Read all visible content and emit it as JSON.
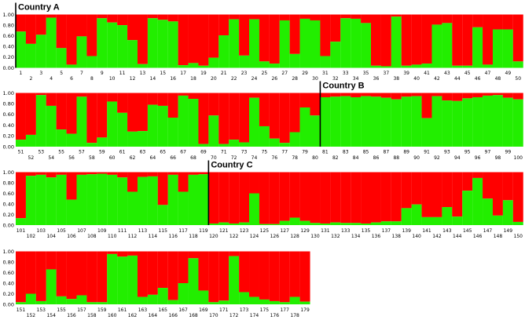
{
  "colors": {
    "cluster_green": "#22ee00",
    "cluster_red": "#ff0000",
    "divider": "#000000"
  },
  "chart_data": {
    "type": "bar",
    "stacked": true,
    "grid": false,
    "ylim": [
      0,
      1
    ],
    "yticks": [
      "0.00",
      "0.20",
      "0.40",
      "0.60",
      "0.80",
      "1.00"
    ],
    "series": [
      {
        "name": "",
        "color": "#22ee00",
        "role": "green"
      },
      {
        "name": "",
        "color": "#ff0000",
        "role": "red"
      }
    ],
    "panels": [
      {
        "start": 1,
        "end": 50
      },
      {
        "start": 51,
        "end": 100
      },
      {
        "start": 101,
        "end": 150
      },
      {
        "start": 151,
        "end": 179
      }
    ],
    "group_labels": [
      {
        "label": "Country A",
        "first_sample": 1
      },
      {
        "label": "Country B",
        "first_sample": 81
      },
      {
        "label": "Country C",
        "first_sample": 120
      }
    ],
    "samples": [
      1,
      2,
      3,
      4,
      5,
      6,
      7,
      8,
      9,
      10,
      11,
      12,
      13,
      14,
      15,
      16,
      17,
      18,
      19,
      20,
      21,
      22,
      23,
      24,
      25,
      26,
      27,
      28,
      29,
      30,
      31,
      32,
      33,
      34,
      35,
      36,
      37,
      38,
      39,
      40,
      41,
      42,
      43,
      44,
      45,
      46,
      47,
      48,
      49,
      50,
      51,
      52,
      53,
      54,
      55,
      56,
      57,
      58,
      59,
      60,
      61,
      62,
      63,
      64,
      65,
      66,
      67,
      68,
      69,
      70,
      71,
      72,
      73,
      74,
      75,
      76,
      77,
      78,
      79,
      80,
      81,
      82,
      83,
      84,
      85,
      86,
      87,
      88,
      89,
      90,
      91,
      92,
      93,
      94,
      95,
      96,
      97,
      98,
      99,
      100,
      101,
      102,
      103,
      104,
      105,
      106,
      107,
      108,
      109,
      110,
      111,
      112,
      113,
      114,
      115,
      116,
      117,
      118,
      119,
      120,
      121,
      122,
      123,
      124,
      125,
      126,
      127,
      128,
      129,
      130,
      131,
      132,
      133,
      134,
      135,
      136,
      137,
      138,
      139,
      140,
      141,
      142,
      143,
      144,
      145,
      146,
      147,
      148,
      149,
      150,
      151,
      152,
      153,
      154,
      155,
      156,
      157,
      158,
      159,
      160,
      161,
      162,
      163,
      164,
      165,
      166,
      167,
      168,
      169,
      170,
      171,
      172,
      173,
      174,
      175,
      176,
      177,
      178,
      179
    ],
    "green_values": [
      0.68,
      0.45,
      0.62,
      0.94,
      0.37,
      0.06,
      0.59,
      0.22,
      0.93,
      0.85,
      0.8,
      0.52,
      0.07,
      0.93,
      0.9,
      0.87,
      0.05,
      0.09,
      0.04,
      0.19,
      0.61,
      0.91,
      0.23,
      0.91,
      0.12,
      0.08,
      0.89,
      0.26,
      0.92,
      0.89,
      0.22,
      0.49,
      0.93,
      0.92,
      0.84,
      0.04,
      0.03,
      0.96,
      0.04,
      0.06,
      0.08,
      0.81,
      0.84,
      0.04,
      0.04,
      0.76,
      0.06,
      0.72,
      0.72,
      0.12,
      0.13,
      0.22,
      0.96,
      0.76,
      0.32,
      0.24,
      0.93,
      0.07,
      0.17,
      0.84,
      0.63,
      0.28,
      0.29,
      0.78,
      0.76,
      0.54,
      0.95,
      0.89,
      0.05,
      0.58,
      0.05,
      0.13,
      0.08,
      0.91,
      0.38,
      0.15,
      0.07,
      0.27,
      0.73,
      0.58,
      0.92,
      0.93,
      0.94,
      0.92,
      0.94,
      0.93,
      0.91,
      0.88,
      0.93,
      0.94,
      0.53,
      0.94,
      0.86,
      0.85,
      0.9,
      0.92,
      0.95,
      0.96,
      0.91,
      0.88,
      0.13,
      0.93,
      0.95,
      0.9,
      0.95,
      0.48,
      0.95,
      0.96,
      0.97,
      0.95,
      0.9,
      0.63,
      0.91,
      0.92,
      0.38,
      0.95,
      0.63,
      0.95,
      0.96,
      0.03,
      0.05,
      0.03,
      0.05,
      0.6,
      0.02,
      0.02,
      0.08,
      0.14,
      0.08,
      0.04,
      0.03,
      0.05,
      0.04,
      0.04,
      0.03,
      0.05,
      0.07,
      0.07,
      0.32,
      0.39,
      0.15,
      0.15,
      0.34,
      0.16,
      0.65,
      0.89,
      0.5,
      0.18,
      0.47,
      0.06,
      0.04,
      0.2,
      0.06,
      0.66,
      0.15,
      0.1,
      0.17,
      0.04,
      0.04,
      0.95,
      0.9,
      0.92,
      0.14,
      0.18,
      0.31,
      0.08,
      0.4,
      0.87,
      0.26,
      0.04,
      0.07,
      0.91,
      0.23,
      0.14,
      0.09,
      0.06,
      0.04,
      0.14,
      0.05
    ]
  }
}
